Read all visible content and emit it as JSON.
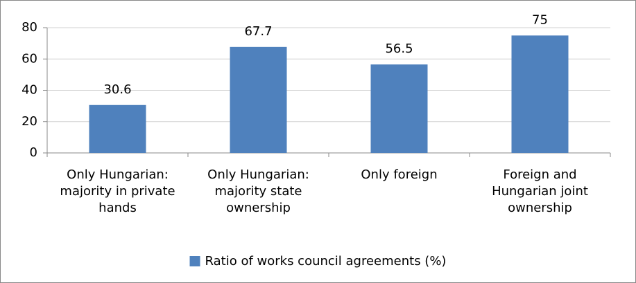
{
  "chart_data": {
    "type": "bar",
    "categories": [
      "Only Hungarian: majority in private hands",
      "Only Hungarian: majority state ownership",
      "Only foreign",
      "Foreign and Hungarian joint ownership"
    ],
    "series": [
      {
        "name": "Ratio of works council agreements (%)",
        "color": "#4f81bd",
        "values": [
          30.6,
          67.7,
          56.5,
          75
        ]
      }
    ],
    "ylim": [
      0,
      80
    ],
    "yticks": [
      0,
      20,
      40,
      60,
      80
    ],
    "grid": true,
    "legend": "bottom"
  }
}
